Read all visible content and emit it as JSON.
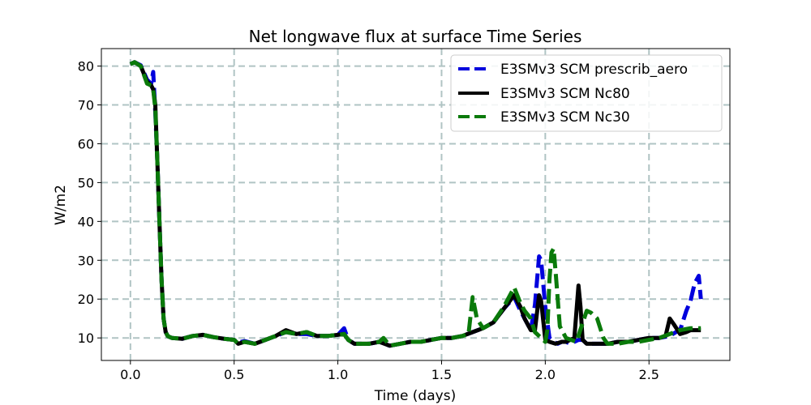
{
  "chart_data": {
    "type": "line",
    "title": "Net longwave flux at surface Time Series",
    "xlabel": "Time (days)",
    "ylabel": "W/m2",
    "xlim": [
      -0.14,
      2.89
    ],
    "ylim": [
      4.2,
      84.5
    ],
    "xticks": [
      0.0,
      0.5,
      1.0,
      1.5,
      2.0,
      2.5
    ],
    "xtick_labels": [
      "0.0",
      "0.5",
      "1.0",
      "1.5",
      "2.0",
      "2.5"
    ],
    "yticks": [
      10,
      20,
      30,
      40,
      50,
      60,
      70,
      80
    ],
    "ytick_labels": [
      "10",
      "20",
      "30",
      "40",
      "50",
      "60",
      "70",
      "80"
    ],
    "grid": true,
    "legend_position": "top-right",
    "series": [
      {
        "name": "E3SMv3 SCM prescrib_aero",
        "color": "#0000dd",
        "style": "dashed",
        "x": [
          0.0,
          0.02,
          0.05,
          0.08,
          0.1,
          0.11,
          0.12,
          0.13,
          0.14,
          0.15,
          0.16,
          0.17,
          0.18,
          0.19,
          0.2,
          0.25,
          0.3,
          0.35,
          0.4,
          0.45,
          0.5,
          0.52,
          0.55,
          0.6,
          0.65,
          0.7,
          0.75,
          0.8,
          0.85,
          0.9,
          0.95,
          1.0,
          1.03,
          1.05,
          1.08,
          1.1,
          1.15,
          1.2,
          1.25,
          1.3,
          1.35,
          1.4,
          1.45,
          1.5,
          1.55,
          1.6,
          1.65,
          1.7,
          1.75,
          1.8,
          1.85,
          1.88,
          1.9,
          1.93,
          1.95,
          1.97,
          1.98,
          2.0,
          2.02,
          2.04,
          2.06,
          2.08,
          2.1,
          2.12,
          2.14,
          2.16,
          2.18,
          2.2,
          2.25,
          2.3,
          2.35,
          2.4,
          2.45,
          2.5,
          2.55,
          2.6,
          2.63,
          2.65,
          2.68,
          2.7,
          2.72,
          2.74,
          2.75
        ],
        "y": [
          80.5,
          81.0,
          80.2,
          76.5,
          75.5,
          78.5,
          68.0,
          55.0,
          40.0,
          25.0,
          15.0,
          11.5,
          10.5,
          10.2,
          10.0,
          9.8,
          10.5,
          10.8,
          10.2,
          9.8,
          9.5,
          8.8,
          9.2,
          8.5,
          9.5,
          10.5,
          11.5,
          11.0,
          11.0,
          10.5,
          10.5,
          10.8,
          12.5,
          9.5,
          8.5,
          8.5,
          8.5,
          9.0,
          8.0,
          8.5,
          9.0,
          9.0,
          9.5,
          10.0,
          10.0,
          10.5,
          11.5,
          12.5,
          14.0,
          17.5,
          20.5,
          17.0,
          15.0,
          12.0,
          18.5,
          31.0,
          30.0,
          18.0,
          10.0,
          9.0,
          8.5,
          9.0,
          9.0,
          8.5,
          9.0,
          9.5,
          9.5,
          8.5,
          8.5,
          8.5,
          9.0,
          9.0,
          9.5,
          10.0,
          10.0,
          10.5,
          11.5,
          12.0,
          17.0,
          19.5,
          24.0,
          26.0,
          20.0
        ]
      },
      {
        "name": "E3SMv3 SCM Nc80",
        "color": "#000000",
        "style": "solid",
        "x": [
          0.0,
          0.02,
          0.05,
          0.08,
          0.1,
          0.11,
          0.12,
          0.13,
          0.14,
          0.15,
          0.16,
          0.17,
          0.18,
          0.19,
          0.2,
          0.25,
          0.3,
          0.35,
          0.4,
          0.45,
          0.5,
          0.52,
          0.55,
          0.6,
          0.65,
          0.7,
          0.75,
          0.8,
          0.85,
          0.9,
          0.95,
          1.0,
          1.03,
          1.05,
          1.08,
          1.1,
          1.15,
          1.2,
          1.25,
          1.3,
          1.35,
          1.4,
          1.45,
          1.5,
          1.55,
          1.6,
          1.65,
          1.7,
          1.75,
          1.8,
          1.85,
          1.88,
          1.9,
          1.93,
          1.95,
          1.97,
          1.98,
          2.0,
          2.02,
          2.05,
          2.08,
          2.1,
          2.12,
          2.14,
          2.16,
          2.17,
          2.18,
          2.2,
          2.25,
          2.3,
          2.35,
          2.4,
          2.45,
          2.5,
          2.55,
          2.58,
          2.6,
          2.62,
          2.65,
          2.68,
          2.7,
          2.72,
          2.75
        ],
        "y": [
          80.5,
          81.0,
          80.0,
          76.0,
          75.0,
          74.0,
          70.0,
          55.0,
          40.0,
          25.0,
          15.0,
          11.5,
          10.5,
          10.2,
          10.0,
          9.8,
          10.5,
          10.8,
          10.2,
          9.8,
          9.5,
          8.5,
          9.0,
          8.5,
          9.5,
          10.5,
          12.0,
          11.0,
          11.5,
          10.5,
          10.5,
          10.8,
          11.0,
          9.5,
          8.5,
          8.5,
          8.5,
          9.0,
          8.0,
          8.5,
          9.0,
          9.0,
          9.5,
          10.0,
          10.0,
          10.5,
          11.5,
          12.5,
          14.0,
          17.5,
          21.0,
          18.0,
          15.0,
          12.0,
          12.0,
          21.0,
          19.5,
          9.5,
          9.0,
          8.5,
          9.0,
          9.0,
          9.5,
          10.0,
          23.5,
          18.0,
          9.5,
          8.5,
          8.5,
          8.5,
          9.0,
          9.0,
          9.5,
          10.0,
          10.0,
          10.5,
          15.0,
          13.5,
          11.0,
          11.5,
          12.0,
          12.0,
          12.0
        ]
      },
      {
        "name": "E3SMv3 SCM Nc30",
        "color": "#0a7a0a",
        "style": "dashed",
        "x": [
          0.0,
          0.02,
          0.05,
          0.08,
          0.1,
          0.11,
          0.12,
          0.13,
          0.14,
          0.15,
          0.16,
          0.17,
          0.18,
          0.19,
          0.2,
          0.25,
          0.3,
          0.35,
          0.4,
          0.45,
          0.5,
          0.52,
          0.55,
          0.6,
          0.65,
          0.7,
          0.75,
          0.8,
          0.85,
          0.9,
          0.95,
          1.0,
          1.03,
          1.05,
          1.08,
          1.1,
          1.15,
          1.2,
          1.22,
          1.25,
          1.3,
          1.35,
          1.4,
          1.45,
          1.5,
          1.55,
          1.6,
          1.63,
          1.65,
          1.67,
          1.7,
          1.75,
          1.8,
          1.85,
          1.88,
          1.9,
          1.93,
          1.95,
          1.97,
          2.0,
          2.01,
          2.02,
          2.03,
          2.04,
          2.05,
          2.07,
          2.1,
          2.15,
          2.2,
          2.22,
          2.25,
          2.28,
          2.3,
          2.35,
          2.4,
          2.45,
          2.5,
          2.55,
          2.6,
          2.65,
          2.7,
          2.75
        ],
        "y": [
          80.5,
          81.0,
          80.0,
          75.5,
          75.0,
          74.0,
          69.0,
          55.0,
          40.0,
          25.0,
          15.0,
          11.5,
          10.5,
          10.2,
          10.0,
          9.8,
          10.5,
          10.8,
          10.2,
          9.8,
          9.5,
          8.5,
          9.0,
          8.5,
          9.5,
          10.5,
          11.5,
          11.0,
          11.5,
          10.5,
          10.5,
          10.8,
          11.0,
          9.5,
          8.5,
          8.5,
          8.5,
          9.0,
          10.0,
          8.0,
          8.5,
          9.0,
          9.0,
          9.5,
          10.0,
          10.0,
          10.5,
          11.0,
          20.5,
          15.0,
          12.5,
          14.0,
          18.0,
          23.0,
          19.0,
          17.0,
          15.0,
          11.5,
          10.5,
          9.0,
          12.0,
          25.0,
          32.0,
          33.0,
          27.0,
          13.0,
          10.0,
          9.0,
          17.0,
          16.5,
          15.0,
          10.0,
          8.5,
          8.5,
          9.0,
          9.0,
          9.5,
          10.0,
          11.0,
          12.0,
          12.5,
          12.5
        ]
      }
    ]
  }
}
